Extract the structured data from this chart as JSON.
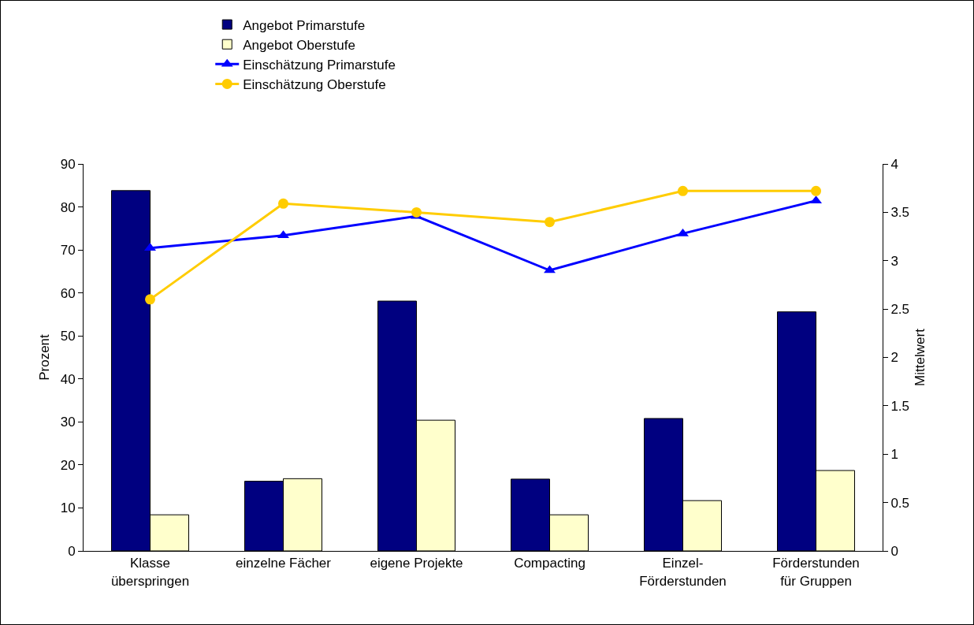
{
  "chart_data": {
    "type": "bar",
    "ylabel": "Prozent",
    "y2label": "Mittelwert",
    "categories": [
      "Klasse überspringen",
      "einzelne Fächer",
      "eigene Projekte",
      "Compacting",
      "Einzel-Förderstunden",
      "Förderstunden für Gruppen"
    ],
    "series": [
      {
        "name": "Angebot Primarstufe",
        "color": "#000080",
        "values": [
          83.8,
          16.2,
          58.1,
          16.7,
          30.8,
          55.6
        ]
      },
      {
        "name": "Angebot Oberstufe",
        "color": "#ffffcc",
        "values": [
          8.4,
          16.8,
          30.4,
          8.4,
          11.7,
          18.7
        ]
      },
      {
        "name": "Einschätzung Primarstufe",
        "type": "line",
        "axis": "y2",
        "marker": "triangle",
        "color": "#0000ff",
        "values": [
          3.13,
          3.26,
          3.46,
          2.9,
          3.28,
          3.62
        ]
      },
      {
        "name": "Einschätzung Oberstufe",
        "type": "line",
        "axis": "y2",
        "marker": "circle",
        "color": "#ffcc00",
        "values": [
          2.6,
          3.59,
          3.5,
          3.4,
          3.72,
          3.72
        ]
      }
    ],
    "ylim": [
      0,
      90
    ],
    "yticks": [
      0,
      10,
      20,
      30,
      40,
      50,
      60,
      70,
      80,
      90
    ],
    "y2lim": [
      0,
      4
    ],
    "y2ticks": [
      0,
      0.5,
      1,
      1.5,
      2,
      2.5,
      3,
      3.5,
      4
    ],
    "grid": false,
    "legend": "top",
    "line_style": "solid"
  }
}
